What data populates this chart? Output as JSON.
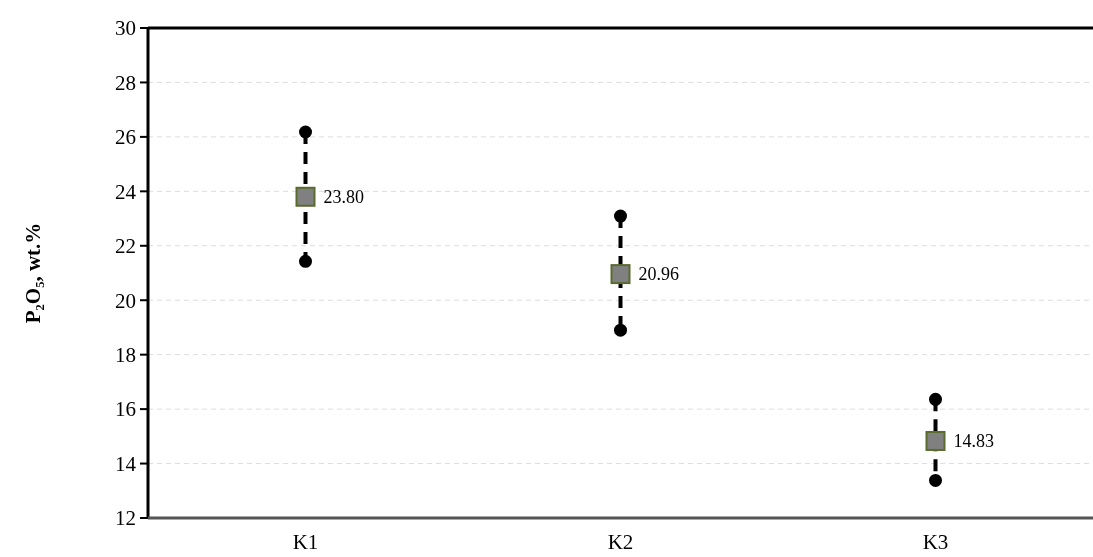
{
  "chart_data": {
    "type": "scatter",
    "ylabel": "P₂O₅, wt.%",
    "categories": [
      "K1",
      "K2",
      "K3"
    ],
    "series": [
      {
        "color": "#000000",
        "marker": "circle",
        "values": [
          26.18,
          23.09,
          16.36
        ]
      },
      {
        "color": "#000000",
        "marker": "circle",
        "values": [
          21.43,
          18.9,
          13.38
        ]
      },
      {
        "color": "#808080",
        "marker": "square",
        "values": [
          23.8,
          20.96,
          14.83
        ],
        "value_labels": [
          "23.80",
          "20.96",
          "14.83"
        ]
      }
    ],
    "ylim": [
      12,
      30
    ],
    "yticks": [
      12,
      14,
      16,
      18,
      20,
      22,
      24,
      26,
      28,
      30
    ],
    "grid": "y",
    "line_style": "dashed"
  }
}
